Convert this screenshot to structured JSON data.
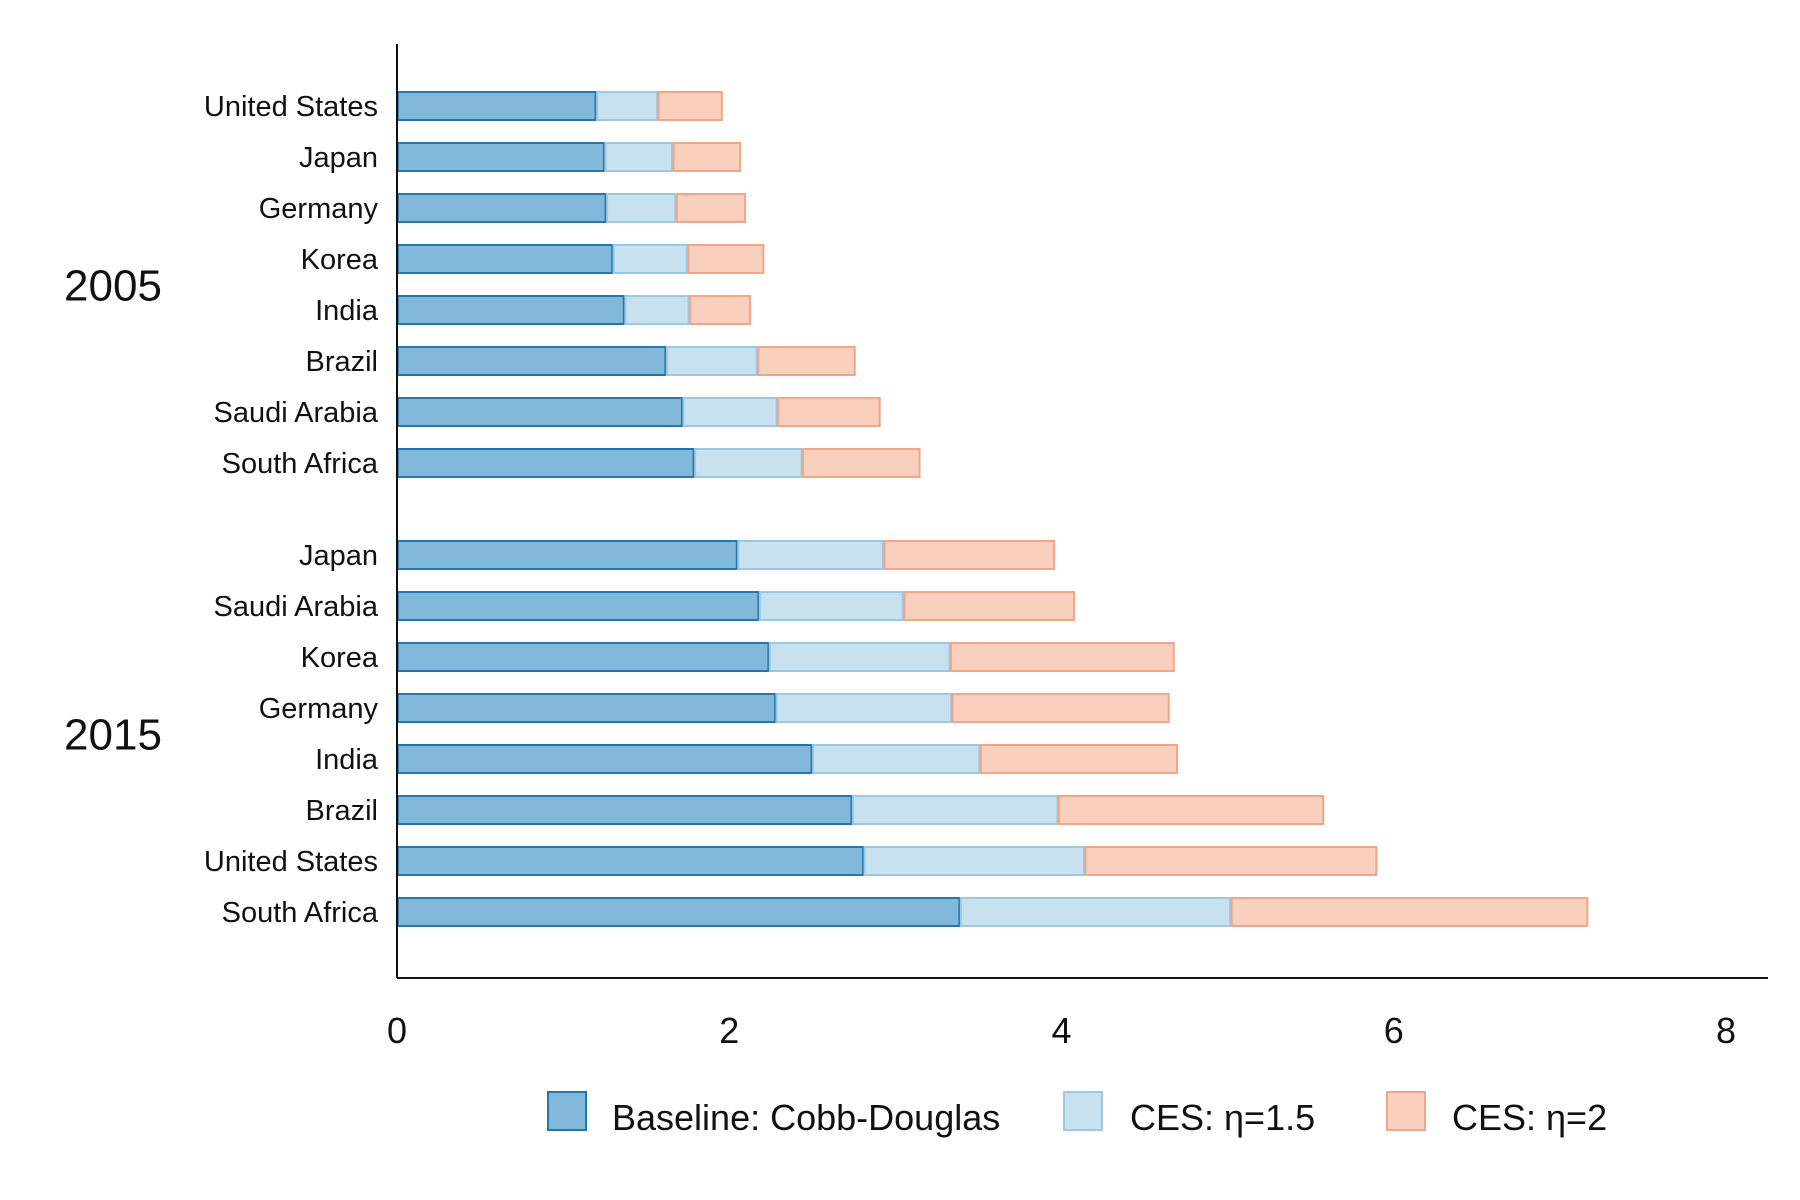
{
  "chart_data": {
    "type": "bar",
    "orientation": "horizontal",
    "stacked": true,
    "xlim": [
      0,
      8
    ],
    "xticks": [
      0,
      2,
      4,
      6,
      8
    ],
    "grid": false,
    "legend_placement": "bottom",
    "groups": [
      {
        "label": "2005",
        "categories": [
          "United States",
          "Japan",
          "Germany",
          "Korea",
          "India",
          "Brazil",
          "Saudi Arabia",
          "South Africa"
        ],
        "series": [
          {
            "name": "Baseline: Cobb-Douglas",
            "values": [
              1.2,
              1.25,
              1.26,
              1.3,
              1.37,
              1.62,
              1.72,
              1.79
            ]
          },
          {
            "name": "CES: η=1.5",
            "values": [
              0.37,
              0.41,
              0.42,
              0.45,
              0.39,
              0.55,
              0.57,
              0.65
            ]
          },
          {
            "name": "CES: η=2",
            "values": [
              0.39,
              0.41,
              0.42,
              0.46,
              0.37,
              0.59,
              0.62,
              0.71
            ]
          }
        ]
      },
      {
        "label": "2015",
        "categories": [
          "Japan",
          "Saudi Arabia",
          "Korea",
          "Germany",
          "India",
          "Brazil",
          "United States",
          "South Africa"
        ],
        "series": [
          {
            "name": "Baseline: Cobb-Douglas",
            "values": [
              2.05,
              2.18,
              2.24,
              2.28,
              2.5,
              2.74,
              2.81,
              3.39
            ]
          },
          {
            "name": "CES: η=1.5",
            "values": [
              0.88,
              0.87,
              1.09,
              1.06,
              1.01,
              1.24,
              1.33,
              1.63
            ]
          },
          {
            "name": "CES: η=2",
            "values": [
              1.03,
              1.03,
              1.35,
              1.31,
              1.19,
              1.6,
              1.76,
              2.15
            ]
          }
        ]
      }
    ],
    "series_colors": [
      {
        "fill": "#82b8da",
        "stroke": "#2377ad"
      },
      {
        "fill": "#c7e1ef",
        "stroke": "#9cc8e2"
      },
      {
        "fill": "#f9d0be",
        "stroke": "#f2a587"
      }
    ]
  }
}
